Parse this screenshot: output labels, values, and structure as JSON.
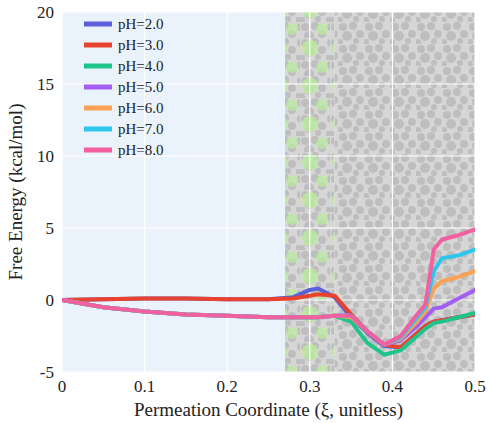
{
  "chart_data": {
    "type": "line",
    "x_label": "Permeation Coordinate (ξ, unitless)",
    "y_label": "Free Energy (kcal/mol)",
    "x": [
      0,
      0.05,
      0.1,
      0.15,
      0.2,
      0.25,
      0.28,
      0.3,
      0.31,
      0.33,
      0.35,
      0.37,
      0.39,
      0.41,
      0.43,
      0.44,
      0.45,
      0.46,
      0.48,
      0.5
    ],
    "series": [
      {
        "name": "pH=2.0",
        "color": "#5b5fdb",
        "values": [
          0,
          0.05,
          0.1,
          0.1,
          0.05,
          0.05,
          0.2,
          0.7,
          0.8,
          0.2,
          -1.2,
          -2.3,
          -3.2,
          -3.3,
          -2.3,
          -1.8,
          -1.5,
          -1.4,
          -1.2,
          -1.0
        ]
      },
      {
        "name": "pH=3.0",
        "color": "#e8432e",
        "values": [
          0,
          0.05,
          0.1,
          0.1,
          0.05,
          0.05,
          0.1,
          0.3,
          0.4,
          0.3,
          -1.0,
          -2.2,
          -3.1,
          -3.3,
          -2.3,
          -1.8,
          -1.5,
          -1.4,
          -1.2,
          -1.0
        ]
      },
      {
        "name": "pH=4.0",
        "color": "#1fc48a",
        "values": [
          0,
          -0.5,
          -0.8,
          -1.0,
          -1.1,
          -1.2,
          -1.2,
          -1.2,
          -1.2,
          -1.1,
          -1.5,
          -3.0,
          -3.8,
          -3.5,
          -2.5,
          -2.0,
          -1.6,
          -1.5,
          -1.2,
          -0.9
        ]
      },
      {
        "name": "pH=5.0",
        "color": "#a25ef2",
        "values": [
          0,
          -0.5,
          -0.8,
          -1.0,
          -1.1,
          -1.2,
          -1.2,
          -1.2,
          -1.2,
          -1.1,
          -1.1,
          -2.2,
          -3.1,
          -2.8,
          -1.8,
          -1.2,
          -0.6,
          -0.5,
          0.1,
          0.7
        ]
      },
      {
        "name": "pH=6.0",
        "color": "#f9a155",
        "values": [
          0,
          -0.5,
          -0.8,
          -1.0,
          -1.1,
          -1.2,
          -1.2,
          -1.2,
          -1.2,
          -1.1,
          -1.2,
          -2.2,
          -3.1,
          -2.7,
          -1.5,
          -0.8,
          0.8,
          1.3,
          1.6,
          2.0
        ]
      },
      {
        "name": "pH=7.0",
        "color": "#2cc6ee",
        "values": [
          0,
          -0.5,
          -0.8,
          -1.0,
          -1.1,
          -1.2,
          -1.2,
          -1.2,
          -1.2,
          -1.1,
          -1.1,
          -2.2,
          -3.1,
          -2.6,
          -1.2,
          -0.5,
          2.0,
          2.9,
          3.1,
          3.5
        ]
      },
      {
        "name": "pH=8.0",
        "color": "#f2609f",
        "values": [
          0,
          -0.5,
          -0.8,
          -1.0,
          -1.1,
          -1.2,
          -1.2,
          -1.2,
          -1.2,
          -1.1,
          -1.1,
          -2.2,
          -3.1,
          -2.5,
          -1.0,
          -0.3,
          3.5,
          4.2,
          4.5,
          4.9
        ]
      }
    ],
    "xlim": [
      0,
      0.5
    ],
    "xticks": [
      0,
      0.1,
      0.2,
      0.3,
      0.4,
      0.5
    ],
    "ylim": [
      -5,
      20
    ],
    "yticks": [
      -5,
      0,
      5,
      10,
      15,
      20
    ],
    "grid": true,
    "legend": "upper left"
  }
}
